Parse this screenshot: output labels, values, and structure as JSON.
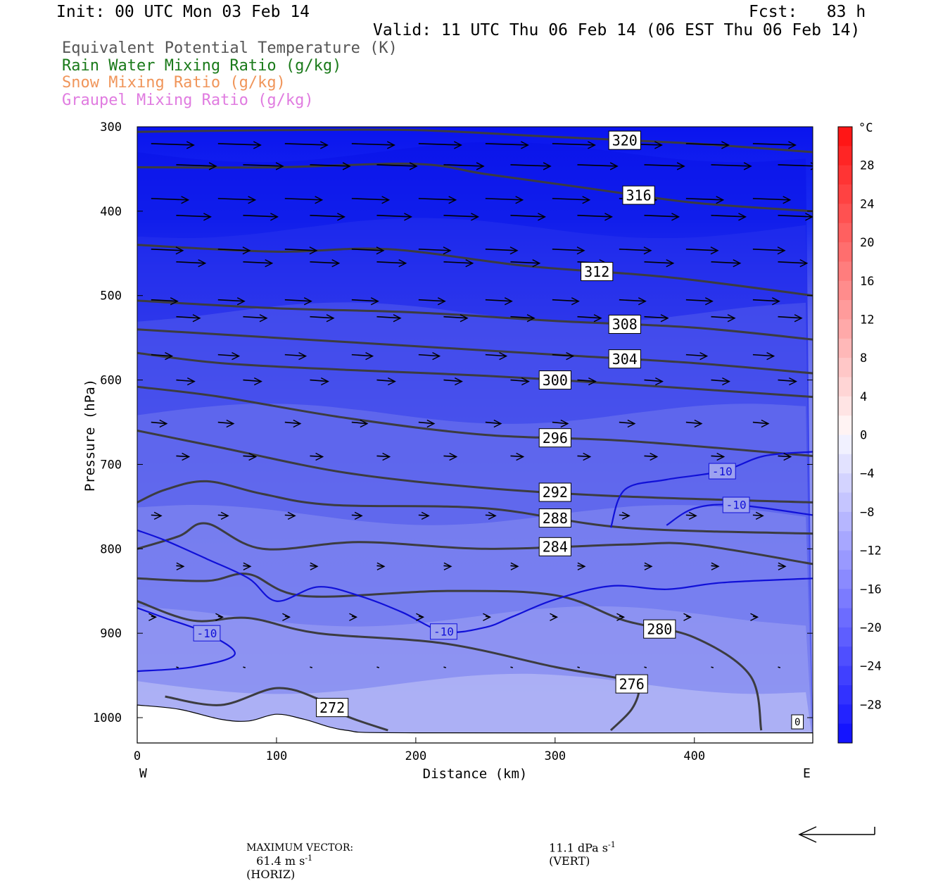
{
  "header": {
    "init": "Init: 00 UTC Mon 03 Feb 14",
    "fcst": "Fcst:   83 h",
    "valid": "Valid: 11 UTC Thu 06 Feb 14 (06 EST Thu 06 Feb 14)"
  },
  "legend": [
    {
      "label": "Equivalent Potential Temperature (K)",
      "color": "#555555"
    },
    {
      "label": "Rain Water Mixing Ratio (g/kg)",
      "color": "#1a7a1a"
    },
    {
      "label": "Snow Mixing Ratio (g/kg)",
      "color": "#f0955a"
    },
    {
      "label": "Graupel Mixing Ratio (g/kg)",
      "color": "#e07be0"
    }
  ],
  "footer": {
    "max_vector_label": "MAXIMUM VECTOR:",
    "horiz_value": "61.4 m s",
    "horiz_exp": "-1",
    "horiz_label": "(HORIZ)",
    "vert_value": "11.1 dPa s",
    "vert_exp": "-1",
    "vert_label": "(VERT)"
  },
  "chart_data": {
    "type": "cross-section",
    "xlabel": "Distance (km)",
    "ylabel": "Pressure (hPa)",
    "x_range": [
      0,
      485
    ],
    "y_range": [
      300,
      1030
    ],
    "y_scale": "linear-reversed",
    "x_ticks": [
      0,
      100,
      200,
      300,
      400
    ],
    "y_ticks": [
      300,
      400,
      500,
      600,
      700,
      800,
      900,
      1000
    ],
    "x_end_labels": {
      "left": "W",
      "right": "E"
    },
    "colorbar": {
      "unit": "°C",
      "labels": [
        28,
        24,
        20,
        16,
        12,
        8,
        4,
        0,
        -4,
        -8,
        -12,
        -16,
        -20,
        -24,
        -28
      ],
      "range": [
        -32,
        32
      ]
    },
    "theta_e_contours": [
      {
        "label": "320",
        "points": [
          [
            0,
            306
          ],
          [
            100,
            304
          ],
          [
            200,
            304
          ],
          [
            300,
            312
          ],
          [
            400,
            320
          ],
          [
            485,
            330
          ]
        ]
      },
      {
        "label": "316",
        "points": [
          [
            0,
            348
          ],
          [
            100,
            348
          ],
          [
            200,
            344
          ],
          [
            250,
            356
          ],
          [
            320,
            372
          ],
          [
            400,
            390
          ],
          [
            485,
            400
          ]
        ]
      },
      {
        "label": "312",
        "points": [
          [
            0,
            440
          ],
          [
            100,
            448
          ],
          [
            180,
            445
          ],
          [
            280,
            465
          ],
          [
            380,
            478
          ],
          [
            485,
            500
          ]
        ]
      },
      {
        "label": "308",
        "points": [
          [
            0,
            506
          ],
          [
            100,
            515
          ],
          [
            200,
            520
          ],
          [
            300,
            530
          ],
          [
            400,
            538
          ],
          [
            485,
            552
          ]
        ]
      },
      {
        "label": "304",
        "points": [
          [
            0,
            540
          ],
          [
            100,
            550
          ],
          [
            200,
            560
          ],
          [
            300,
            570
          ],
          [
            400,
            580
          ],
          [
            485,
            592
          ]
        ]
      },
      {
        "label": "300",
        "points": [
          [
            0,
            568
          ],
          [
            60,
            580
          ],
          [
            150,
            588
          ],
          [
            250,
            595
          ],
          [
            350,
            605
          ],
          [
            485,
            620
          ]
        ]
      },
      {
        "label": "296",
        "points": [
          [
            0,
            608
          ],
          [
            60,
            620
          ],
          [
            150,
            645
          ],
          [
            250,
            665
          ],
          [
            350,
            672
          ],
          [
            485,
            690
          ]
        ]
      },
      {
        "label": "292",
        "points": [
          [
            0,
            660
          ],
          [
            60,
            680
          ],
          [
            150,
            710
          ],
          [
            250,
            728
          ],
          [
            350,
            738
          ],
          [
            485,
            745
          ]
        ]
      },
      {
        "label": "288",
        "points": [
          [
            0,
            745
          ],
          [
            20,
            730
          ],
          [
            50,
            720
          ],
          [
            90,
            735
          ],
          [
            140,
            748
          ],
          [
            250,
            752
          ],
          [
            350,
            775
          ],
          [
            485,
            782
          ]
        ]
      },
      {
        "label": "284",
        "points": [
          [
            0,
            800
          ],
          [
            30,
            785
          ],
          [
            50,
            770
          ],
          [
            90,
            800
          ],
          [
            160,
            792
          ],
          [
            250,
            800
          ],
          [
            350,
            795
          ],
          [
            400,
            795
          ],
          [
            485,
            818
          ]
        ]
      },
      {
        "label": "280",
        "points": [
          [
            0,
            835
          ],
          [
            50,
            838
          ],
          [
            80,
            830
          ],
          [
            120,
            856
          ],
          [
            220,
            850
          ],
          [
            300,
            855
          ],
          [
            350,
            885
          ],
          [
            400,
            905
          ],
          [
            440,
            950
          ],
          [
            448,
            1015
          ]
        ]
      },
      {
        "label": "276",
        "points": [
          [
            0,
            862
          ],
          [
            40,
            885
          ],
          [
            80,
            882
          ],
          [
            130,
            900
          ],
          [
            220,
            912
          ],
          [
            300,
            940
          ],
          [
            350,
            955
          ],
          [
            360,
            965
          ],
          [
            355,
            990
          ],
          [
            340,
            1015
          ]
        ]
      },
      {
        "label": "272",
        "points": [
          [
            20,
            975
          ],
          [
            60,
            985
          ],
          [
            100,
            965
          ],
          [
            130,
            978
          ],
          [
            150,
            998
          ],
          [
            180,
            1015
          ]
        ]
      }
    ],
    "temperature_contours": [
      {
        "label": "-10",
        "points": [
          [
            0,
            778
          ],
          [
            20,
            790
          ],
          [
            50,
            812
          ],
          [
            80,
            835
          ],
          [
            100,
            862
          ],
          [
            130,
            845
          ],
          [
            160,
            856
          ],
          [
            190,
            875
          ],
          [
            220,
            898
          ],
          [
            250,
            893
          ],
          [
            270,
            880
          ],
          [
            300,
            860
          ],
          [
            340,
            844
          ],
          [
            380,
            848
          ],
          [
            420,
            840
          ],
          [
            485,
            835
          ]
        ]
      },
      {
        "label": "-10",
        "points": [
          [
            0,
            945
          ],
          [
            40,
            940
          ],
          [
            70,
            925
          ],
          [
            50,
            900
          ],
          [
            20,
            882
          ],
          [
            0,
            870
          ]
        ]
      },
      {
        "label": "-10",
        "points": [
          [
            340,
            775
          ],
          [
            350,
            730
          ],
          [
            380,
            718
          ],
          [
            420,
            708
          ],
          [
            450,
            690
          ],
          [
            485,
            685
          ]
        ]
      },
      {
        "label": "-10",
        "points": [
          [
            380,
            772
          ],
          [
            400,
            752
          ],
          [
            430,
            748
          ],
          [
            485,
            760
          ]
        ]
      }
    ],
    "wind_vectors": {
      "rows_hpa": [
        320,
        345,
        385,
        405,
        445,
        460,
        505,
        525,
        570,
        600,
        650,
        690,
        760,
        820,
        880,
        940
      ],
      "count_per_row": 10
    },
    "zero_label": "0"
  }
}
